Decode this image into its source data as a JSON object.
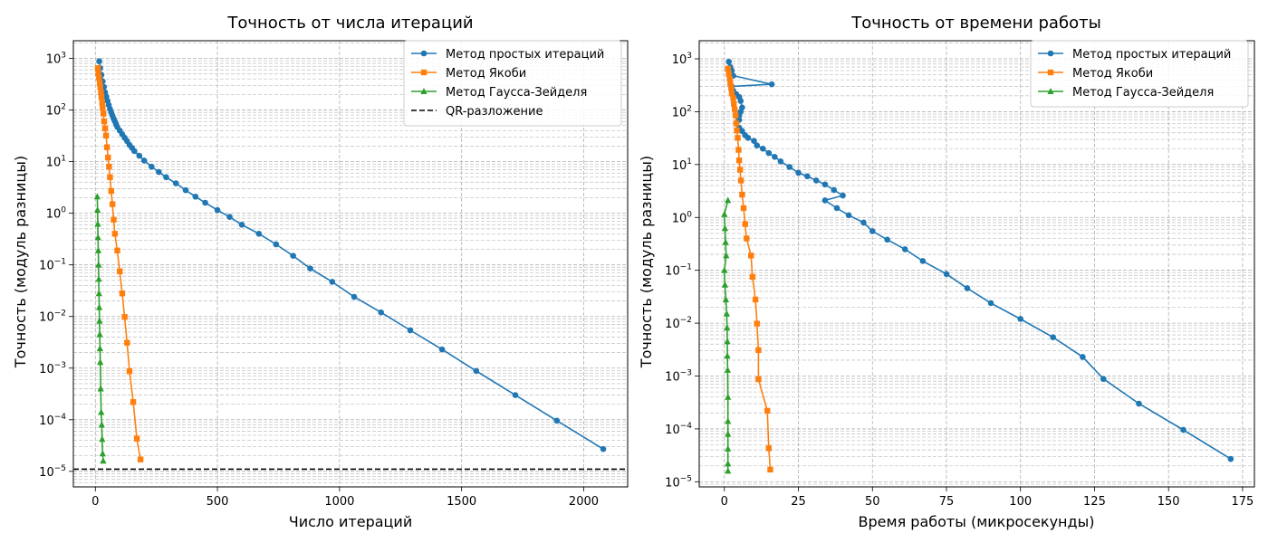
{
  "chart_data": [
    {
      "type": "line",
      "title": "Точность от числа итераций",
      "xlabel": "Число итераций",
      "ylabel": "Точность (модуль разницы)",
      "yscale": "log",
      "xlim": [
        -90,
        2180
      ],
      "ylim": [
        5e-06,
        2200
      ],
      "grid": true,
      "legend_position": "top-right",
      "x_ticks": [
        "0",
        "500",
        "1000",
        "1500",
        "2000"
      ],
      "y_ticks_exponents": [
        "3",
        "2",
        "1",
        "0",
        "−1",
        "−2",
        "−3",
        "−4",
        "−5"
      ],
      "reference_line": {
        "name": "QR-разложение",
        "y": 1.1e-05
      },
      "series": [
        {
          "name": "Метод простых итераций",
          "color": "#1f77b4",
          "marker": "circle",
          "x": [
            16,
            20,
            25,
            30,
            35,
            40,
            45,
            50,
            55,
            60,
            65,
            70,
            75,
            80,
            85,
            90,
            100,
            110,
            120,
            130,
            140,
            150,
            160,
            180,
            200,
            230,
            260,
            290,
            330,
            370,
            410,
            450,
            500,
            550,
            600,
            670,
            740,
            810,
            880,
            970,
            1060,
            1170,
            1290,
            1420,
            1560,
            1720,
            1890,
            2080
          ],
          "y": [
            880,
            650,
            480,
            360,
            280,
            220,
            180,
            150,
            125,
            105,
            90,
            78,
            68,
            60,
            53,
            47,
            40,
            34,
            29,
            25,
            21,
            18.5,
            16,
            13,
            10.5,
            8,
            6.3,
            5,
            3.8,
            2.8,
            2.1,
            1.6,
            1.15,
            0.85,
            0.6,
            0.4,
            0.25,
            0.15,
            0.085,
            0.047,
            0.024,
            0.012,
            0.0054,
            0.0023,
            0.00088,
            0.0003,
            9.6e-05,
            2.7e-05
          ]
        },
        {
          "name": "Метод Якоби",
          "color": "#ff7f0e",
          "marker": "square",
          "x": [
            10,
            12,
            15,
            18,
            20,
            23,
            25,
            28,
            30,
            33,
            36,
            40,
            44,
            48,
            52,
            56,
            60,
            65,
            70,
            75,
            80,
            90,
            100,
            110,
            120,
            130,
            140,
            155,
            170,
            185
          ],
          "y": [
            650,
            520,
            420,
            340,
            280,
            220,
            180,
            140,
            110,
            85,
            60,
            44,
            32,
            19,
            12,
            8,
            5,
            2.7,
            1.5,
            0.75,
            0.4,
            0.19,
            0.075,
            0.028,
            0.0098,
            0.0031,
            0.00087,
            0.00022,
            4.3e-05,
            1.7e-05
          ]
        },
        {
          "name": "Метод Гаусса-Зейделя",
          "color": "#2ca02c",
          "marker": "triangle",
          "x": [
            8,
            9,
            10,
            11,
            12,
            13,
            14,
            15,
            16,
            17,
            18,
            19,
            20,
            22,
            24,
            26,
            28,
            30,
            32
          ],
          "y": [
            2.1,
            1.15,
            0.62,
            0.34,
            0.19,
            0.1,
            0.053,
            0.028,
            0.015,
            0.0082,
            0.0045,
            0.0024,
            0.0013,
            0.0004,
            0.00014,
            8e-05,
            4.2e-05,
            2.2e-05,
            1.6e-05
          ]
        }
      ]
    },
    {
      "type": "line",
      "title": "Точность от времени работы",
      "xlabel": "Время работы (микросекунды)",
      "ylabel": "Точность (модуль разницы)",
      "yscale": "log",
      "xlim": [
        -8.5,
        179
      ],
      "ylim": [
        8e-06,
        2200
      ],
      "grid": true,
      "legend_position": "top-right",
      "x_ticks": [
        "0",
        "25",
        "50",
        "75",
        "100",
        "125",
        "150",
        "175"
      ],
      "y_ticks_exponents": [
        "3",
        "2",
        "1",
        "0",
        "−1",
        "−2",
        "−3",
        "−4",
        "−5"
      ],
      "series": [
        {
          "name": "Метод простых итераций",
          "color": "#1f77b4",
          "marker": "circle",
          "x": [
            1.5,
            2,
            2.5,
            3,
            16,
            2.5,
            3,
            4,
            5,
            5.5,
            6,
            5.5,
            5,
            5,
            4,
            5,
            6,
            7,
            8,
            10,
            11,
            13,
            15,
            17,
            19,
            22,
            25,
            28,
            31,
            34,
            37,
            40,
            34,
            38,
            42,
            47,
            50,
            55,
            61,
            67,
            75,
            82,
            90,
            100,
            111,
            121,
            128,
            140,
            155,
            171
          ],
          "y": [
            880,
            700,
            600,
            480,
            330,
            300,
            250,
            215,
            190,
            160,
            120,
            100,
            85,
            70,
            60,
            50,
            43,
            36,
            32,
            28,
            23,
            20,
            16.5,
            14,
            11.5,
            9,
            7,
            6,
            5,
            4.2,
            3.3,
            2.6,
            2.1,
            1.5,
            1.1,
            0.8,
            0.55,
            0.38,
            0.25,
            0.15,
            0.085,
            0.046,
            0.024,
            0.012,
            0.0054,
            0.0023,
            0.00088,
            0.0003,
            9.6e-05,
            2.7e-05
          ]
        },
        {
          "name": "Метод Якоби",
          "color": "#ff7f0e",
          "marker": "square",
          "x": [
            1.2,
            1.5,
            1.8,
            2,
            2.3,
            2.5,
            3,
            3.2,
            3.5,
            3.8,
            4,
            4.2,
            4.5,
            4.8,
            5,
            5.3,
            5.6,
            6,
            6.5,
            7,
            7.5,
            9,
            9.5,
            10.5,
            11,
            11.5,
            11.5,
            14.5,
            15,
            15.5
          ],
          "y": [
            650,
            520,
            420,
            340,
            280,
            220,
            180,
            140,
            110,
            85,
            60,
            44,
            32,
            19,
            12,
            8,
            5,
            2.7,
            1.5,
            0.75,
            0.4,
            0.19,
            0.075,
            0.028,
            0.0098,
            0.0031,
            0.00087,
            0.00022,
            4.3e-05,
            1.7e-05
          ]
        },
        {
          "name": "Метод Гаусса-Зейделя",
          "color": "#2ca02c",
          "marker": "triangle",
          "x": [
            1.2,
            0,
            0.2,
            0.4,
            0.6,
            0,
            0.2,
            0.5,
            0.8,
            0.9,
            1,
            1,
            1.1,
            1.2,
            1.2,
            1.2,
            1.2,
            1.2,
            1.2
          ],
          "y": [
            2.1,
            1.15,
            0.62,
            0.34,
            0.19,
            0.1,
            0.053,
            0.028,
            0.015,
            0.0082,
            0.0045,
            0.0024,
            0.0013,
            0.0004,
            0.00014,
            8e-05,
            4.2e-05,
            2.2e-05,
            1.6e-05
          ]
        }
      ]
    }
  ]
}
